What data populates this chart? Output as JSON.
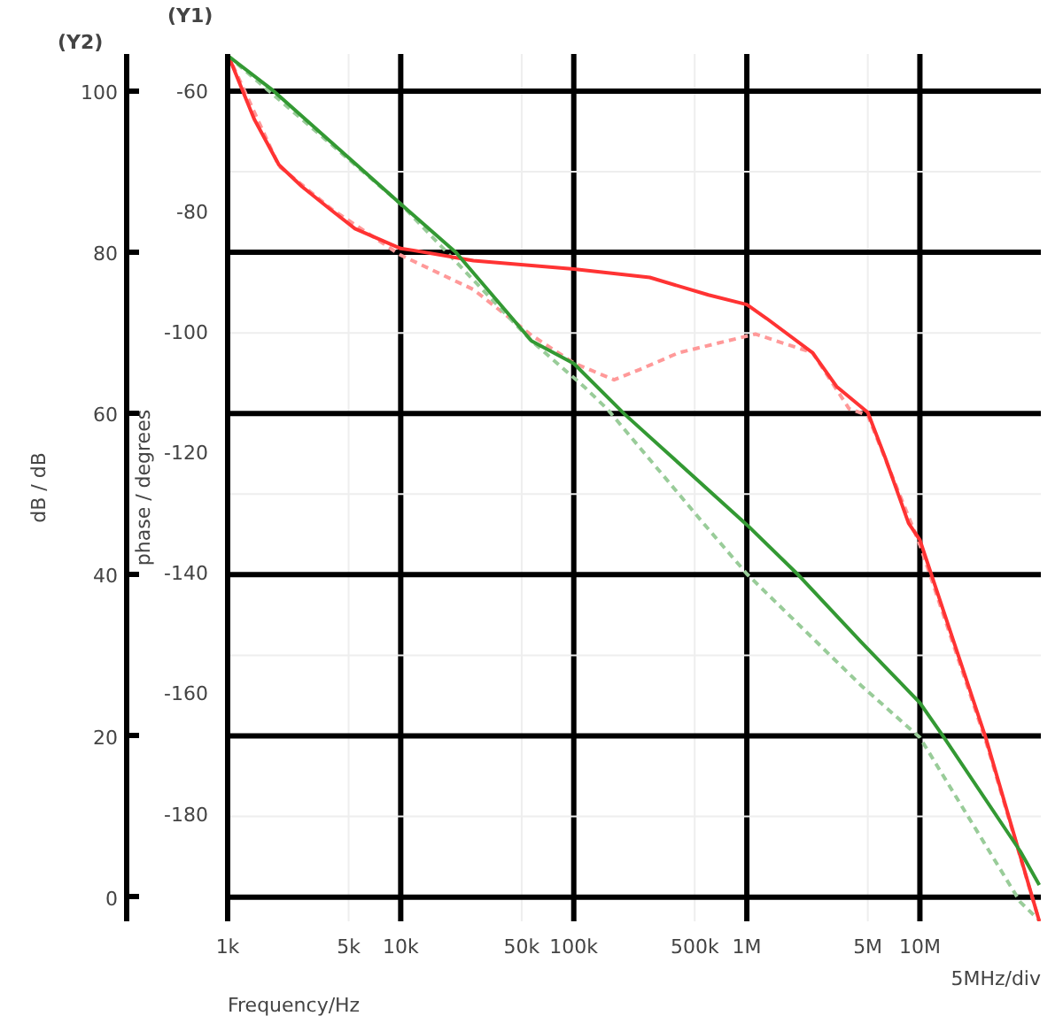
{
  "chart_data": {
    "type": "line",
    "xlabel": "Frequency/Hz",
    "ylabel": "phase / degrees",
    "y2label": "dB / dB",
    "annotations": [
      "(Y2)",
      "(Y1)",
      "5MHz/div"
    ],
    "log": "x",
    "grid": true,
    "xlim": [
      1000,
      50000000
    ],
    "xticks": [
      {
        "value": 1000,
        "label": "1k"
      },
      {
        "value": 5000,
        "label": "5k"
      },
      {
        "value": 10000,
        "label": "10k"
      },
      {
        "value": 50000,
        "label": "50k"
      },
      {
        "value": 100000,
        "label": "100k"
      },
      {
        "value": 500000,
        "label": "500k"
      },
      {
        "value": 1000000,
        "label": "1M"
      },
      {
        "value": 5000000,
        "label": "5M"
      },
      {
        "value": 10000000,
        "label": "10M"
      }
    ],
    "ylim": [
      -198,
      -54
    ],
    "yticks": [
      -60,
      -80,
      -100,
      -120,
      -140,
      -160,
      -180
    ],
    "y2lim": [
      -3,
      104.6
    ],
    "y2ticks": [
      0,
      20,
      40,
      60,
      80,
      100
    ],
    "series": [
      {
        "color": "#ff9999",
        "line_style": "dashed",
        "axis": "y",
        "x": [
          1000,
          1978,
          4003,
          10000,
          26300,
          57000,
          100000,
          171000,
          240000,
          404000,
          1120000,
          2400000,
          3900000,
          5000000,
          10000000,
          24000000,
          49000000
        ],
        "values": [
          -54,
          -72.6,
          -79.8,
          -87.4,
          -93.1,
          -100.7,
          -105.3,
          -108.1,
          -106.4,
          -103.6,
          -100.5,
          -103.6,
          -112.9,
          -114,
          -135.5,
          -168,
          -198
        ]
      },
      {
        "color": "#99cc99",
        "line_style": "dashed",
        "axis": "y2",
        "x": [
          1000,
          10000,
          57000,
          115000,
          157000,
          560000,
          1000000,
          4600000,
          10000000,
          38000000,
          49000000
        ],
        "values": [
          104.4,
          86,
          69,
          63.3,
          60.5,
          46.4,
          40.1,
          26.2,
          19.8,
          -0.6,
          -2.9
        ]
      },
      {
        "color": "#ff3333",
        "line_style": "solid",
        "axis": "y",
        "x": [
          1000,
          1423,
          1978,
          2685,
          4003,
          5442,
          10000,
          11800,
          26300,
          100000,
          275000,
          600000,
          1000000,
          1300000,
          2400000,
          3300000,
          5000000,
          6300000,
          8600000,
          10000000,
          24000000,
          49000000
        ],
        "values": [
          -54,
          -64.8,
          -72.4,
          -76,
          -80,
          -83,
          -86.3,
          -86.6,
          -88.3,
          -89.7,
          -91.1,
          -94,
          -95.6,
          -97.9,
          -103.6,
          -109.2,
          -113.5,
          -121,
          -131.9,
          -134.7,
          -167.5,
          -198
        ]
      },
      {
        "color": "#339933",
        "line_style": "solid",
        "axis": "y2",
        "x": [
          1000,
          1799,
          10000,
          20800,
          57000,
          100000,
          197000,
          1000000,
          2000000,
          4600000,
          10000000,
          13600000,
          38000000,
          49000000
        ],
        "values": [
          104.4,
          100.2,
          86,
          80,
          69,
          66.2,
          59.9,
          46.2,
          39.9,
          31.6,
          24.1,
          20,
          5.7,
          1.5
        ]
      }
    ]
  }
}
